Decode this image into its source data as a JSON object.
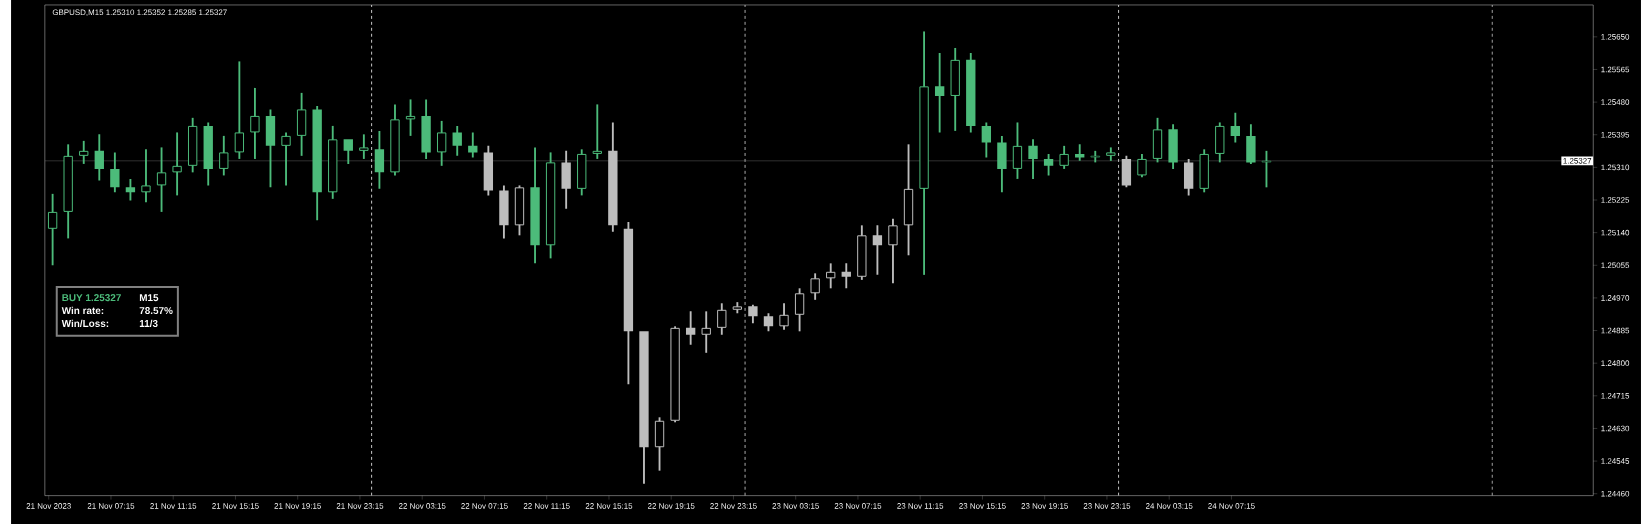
{
  "chart_data": {
    "type": "candlestick",
    "title": "GBPUSD,M15  1.25310 1.25352 1.25285 1.25327",
    "annotations": [
      "BUY 1.25327",
      "M15",
      "Win rate:",
      "78.57%",
      "Win/Loss:",
      "11/3"
    ],
    "x": [
      "2023-11-21T03:30",
      "2023-11-21T04:30",
      "2023-11-21T05:30",
      "2023-11-21T06:30",
      "2023-11-21T07:30",
      "2023-11-21T08:30",
      "2023-11-21T09:30",
      "2023-11-21T10:30",
      "2023-11-21T11:30",
      "2023-11-21T12:30",
      "2023-11-21T13:30",
      "2023-11-21T14:30",
      "2023-11-21T15:30",
      "2023-11-21T16:30",
      "2023-11-21T17:30",
      "2023-11-21T18:30",
      "2023-11-21T19:30",
      "2023-11-21T20:30",
      "2023-11-21T21:30",
      "2023-11-21T22:30",
      "2023-11-21T23:30",
      "2023-11-22T00:30",
      "2023-11-22T01:30",
      "2023-11-22T02:30",
      "2023-11-22T03:30",
      "2023-11-22T04:30",
      "2023-11-22T05:30",
      "2023-11-22T06:30",
      "2023-11-22T07:30",
      "2023-11-22T08:30",
      "2023-11-22T09:30",
      "2023-11-22T10:30",
      "2023-11-22T11:30",
      "2023-11-22T12:30",
      "2023-11-22T13:30",
      "2023-11-22T14:30",
      "2023-11-22T15:30",
      "2023-11-22T16:30",
      "2023-11-22T17:30",
      "2023-11-22T18:30",
      "2023-11-22T19:30",
      "2023-11-22T20:30",
      "2023-11-22T21:30",
      "2023-11-22T22:30",
      "2023-11-22T23:30",
      "2023-11-23T00:30",
      "2023-11-23T01:30",
      "2023-11-23T02:30",
      "2023-11-23T03:30",
      "2023-11-23T04:30",
      "2023-11-23T05:30",
      "2023-11-23T06:30",
      "2023-11-23T07:30",
      "2023-11-23T08:30",
      "2023-11-23T09:30",
      "2023-11-23T10:30",
      "2023-11-23T11:30",
      "2023-11-23T12:30",
      "2023-11-23T13:30",
      "2023-11-23T14:30",
      "2023-11-23T15:30",
      "2023-11-23T16:30",
      "2023-11-23T17:30",
      "2023-11-23T18:30",
      "2023-11-23T19:30",
      "2023-11-23T20:30",
      "2023-11-23T21:30",
      "2023-11-23T22:30",
      "2023-11-23T23:30",
      "2023-11-24T00:30",
      "2023-11-24T01:30",
      "2023-11-24T02:30",
      "2023-11-24T03:30",
      "2023-11-24T04:30",
      "2023-11-24T05:30",
      "2023-11-24T06:30",
      "2023-11-24T07:30",
      "2023-11-24T08:30",
      "2023-11-24T09:30"
    ],
    "ohlc": [
      [
        1.2515,
        1.25241,
        1.25055,
        1.25194
      ],
      [
        1.25194,
        1.2537,
        1.25125,
        1.2534
      ],
      [
        1.2534,
        1.25379,
        1.25319,
        1.25353
      ],
      [
        1.25353,
        1.25396,
        1.25276,
        1.25306
      ],
      [
        1.25306,
        1.25349,
        1.25245,
        1.25258
      ],
      [
        1.25258,
        1.2528,
        1.25224,
        1.25245
      ],
      [
        1.25245,
        1.25357,
        1.25219,
        1.25263
      ],
      [
        1.25263,
        1.25362,
        1.25194,
        1.25297
      ],
      [
        1.25297,
        1.25401,
        1.25237,
        1.25314
      ],
      [
        1.25314,
        1.25439,
        1.25297,
        1.25418
      ],
      [
        1.25418,
        1.25427,
        1.25263,
        1.25306
      ],
      [
        1.25306,
        1.25392,
        1.25289,
        1.25349
      ],
      [
        1.25349,
        1.25586,
        1.25332,
        1.25401
      ],
      [
        1.25401,
        1.25517,
        1.25332,
        1.25444
      ],
      [
        1.25444,
        1.25461,
        1.25258,
        1.25366
      ],
      [
        1.25366,
        1.25401,
        1.25263,
        1.25392
      ],
      [
        1.25392,
        1.25504,
        1.2534,
        1.25461
      ],
      [
        1.25461,
        1.2547,
        1.25172,
        1.25245
      ],
      [
        1.25245,
        1.25418,
        1.25228,
        1.25383
      ],
      [
        1.25383,
        1.25383,
        1.25319,
        1.25353
      ],
      [
        1.25353,
        1.25396,
        1.25332,
        1.25362
      ],
      [
        1.25357,
        1.25405,
        1.25254,
        1.25297
      ],
      [
        1.25297,
        1.25474,
        1.25289,
        1.25435
      ],
      [
        1.25435,
        1.25487,
        1.25392,
        1.25444
      ],
      [
        1.25444,
        1.25487,
        1.25332,
        1.25349
      ],
      [
        1.25349,
        1.25431,
        1.25314,
        1.25401
      ],
      [
        1.25401,
        1.25418,
        1.2534,
        1.25366
      ],
      [
        1.25366,
        1.25401,
        1.25336,
        1.25349
      ],
      [
        1.25349,
        1.25366,
        1.25237,
        1.2525
      ],
      [
        1.2525,
        1.25263,
        1.25125,
        1.25159
      ],
      [
        1.25159,
        1.25263,
        1.25133,
        1.25258
      ],
      [
        1.25258,
        1.25362,
        1.2506,
        1.25107
      ],
      [
        1.25107,
        1.25349,
        1.25073,
        1.25323
      ],
      [
        1.25323,
        1.25353,
        1.25202,
        1.25254
      ],
      [
        1.25254,
        1.25357,
        1.25237,
        1.25345
      ],
      [
        1.25345,
        1.25474,
        1.25332,
        1.25353
      ],
      [
        1.25353,
        1.25427,
        1.25142,
        1.25159
      ],
      [
        1.2515,
        1.25168,
        1.24745,
        1.24883
      ],
      [
        1.24883,
        1.24883,
        1.24486,
        1.24581
      ],
      [
        1.24581,
        1.24659,
        1.2452,
        1.2465
      ],
      [
        1.2465,
        1.24896,
        1.24646,
        1.24892
      ],
      [
        1.24892,
        1.24935,
        1.24848,
        1.24874
      ],
      [
        1.24874,
        1.24935,
        1.24827,
        1.24892
      ],
      [
        1.24892,
        1.24956,
        1.24874,
        1.24939
      ],
      [
        1.24939,
        1.24959,
        1.2493,
        1.24948
      ],
      [
        1.24948,
        1.24952,
        1.24904,
        1.24922
      ],
      [
        1.24922,
        1.2493,
        1.24883,
        1.24896
      ],
      [
        1.24896,
        1.24956,
        1.24887,
        1.24926
      ],
      [
        1.24926,
        1.24995,
        1.24883,
        1.24982
      ],
      [
        1.24982,
        1.25034,
        1.24965,
        1.25021
      ],
      [
        1.25021,
        1.2506,
        1.24995,
        1.25038
      ],
      [
        1.25038,
        1.2506,
        1.24995,
        1.25025
      ],
      [
        1.25025,
        1.25159,
        1.25017,
        1.25133
      ],
      [
        1.25133,
        1.25159,
        1.2503,
        1.25107
      ],
      [
        1.25107,
        1.25176,
        1.25008,
        1.25159
      ],
      [
        1.25159,
        1.2537,
        1.25081,
        1.25254
      ],
      [
        1.25254,
        1.25664,
        1.2503,
        1.25521
      ],
      [
        1.25521,
        1.25608,
        1.25401,
        1.25496
      ],
      [
        1.25496,
        1.25621,
        1.25405,
        1.2559
      ],
      [
        1.2559,
        1.25608,
        1.25401,
        1.25418
      ],
      [
        1.25418,
        1.25427,
        1.25336,
        1.25375
      ],
      [
        1.25375,
        1.25392,
        1.25245,
        1.25306
      ],
      [
        1.25306,
        1.25427,
        1.2528,
        1.25366
      ],
      [
        1.25366,
        1.25383,
        1.2528,
        1.25332
      ],
      [
        1.25332,
        1.25345,
        1.25289,
        1.25314
      ],
      [
        1.25314,
        1.25366,
        1.25306,
        1.25345
      ],
      [
        1.25345,
        1.2537,
        1.25327,
        1.25336
      ],
      [
        1.25336,
        1.25353,
        1.25323,
        1.2534
      ],
      [
        1.2534,
        1.25362,
        1.25327,
        1.25349
      ],
      [
        1.25332,
        1.2534,
        1.25258,
        1.25263
      ],
      [
        1.25289,
        1.25345,
        1.25284,
        1.25332
      ],
      [
        1.25332,
        1.25439,
        1.25323,
        1.25409
      ],
      [
        1.25409,
        1.25422,
        1.25306,
        1.25323
      ],
      [
        1.25323,
        1.25332,
        1.25237,
        1.25254
      ],
      [
        1.25254,
        1.25357,
        1.25245,
        1.25345
      ],
      [
        1.25345,
        1.25427,
        1.25323,
        1.25418
      ],
      [
        1.25418,
        1.25452,
        1.25375,
        1.25392
      ],
      [
        1.25392,
        1.25422,
        1.25319,
        1.25323
      ],
      [
        1.25323,
        1.25353,
        1.25258,
        1.25327
      ]
    ],
    "colors": [
      "#4cbb7a",
      "#4cbb7a",
      "#4cbb7a",
      "#4cbb7a",
      "#4cbb7a",
      "#4cbb7a",
      "#4cbb7a",
      "#4cbb7a",
      "#4cbb7a",
      "#4cbb7a",
      "#4cbb7a",
      "#4cbb7a",
      "#4cbb7a",
      "#4cbb7a",
      "#4cbb7a",
      "#4cbb7a",
      "#4cbb7a",
      "#4cbb7a",
      "#4cbb7a",
      "#4cbb7a",
      "#4cbb7a",
      "#4cbb7a",
      "#4cbb7a",
      "#4cbb7a",
      "#4cbb7a",
      "#4cbb7a",
      "#4cbb7a",
      "#4cbb7a",
      "#bdbdbd",
      "#bdbdbd",
      "#bdbdbd",
      "#4cbb7a",
      "#4cbb7a",
      "#bdbdbd",
      "#4cbb7a",
      "#4cbb7a",
      "#bdbdbd",
      "#bdbdbd",
      "#bdbdbd",
      "#bdbdbd",
      "#bdbdbd",
      "#bdbdbd",
      "#bdbdbd",
      "#bdbdbd",
      "#bdbdbd",
      "#bdbdbd",
      "#bdbdbd",
      "#bdbdbd",
      "#bdbdbd",
      "#bdbdbd",
      "#bdbdbd",
      "#bdbdbd",
      "#bdbdbd",
      "#bdbdbd",
      "#bdbdbd",
      "#bdbdbd",
      "#4cbb7a",
      "#4cbb7a",
      "#4cbb7a",
      "#4cbb7a",
      "#4cbb7a",
      "#4cbb7a",
      "#4cbb7a",
      "#4cbb7a",
      "#4cbb7a",
      "#4cbb7a",
      "#4cbb7a",
      "#4cbb7a",
      "#4cbb7a",
      "#bdbdbd",
      "#4cbb7a",
      "#4cbb7a",
      "#4cbb7a",
      "#bdbdbd",
      "#4cbb7a",
      "#4cbb7a",
      "#4cbb7a",
      "#4cbb7a",
      "#4cbb7a"
    ],
    "xlim": [
      "2023-11-21T03:00",
      "2023-11-25T06:30"
    ],
    "xticks": [
      {
        "value": "2023-11-21T03:15",
        "label": "21 Nov 2023"
      },
      {
        "value": "2023-11-21T07:15",
        "label": "21 Nov 07:15"
      },
      {
        "value": "2023-11-21T11:15",
        "label": "21 Nov 11:15"
      },
      {
        "value": "2023-11-21T15:15",
        "label": "21 Nov 15:15"
      },
      {
        "value": "2023-11-21T19:15",
        "label": "21 Nov 19:15"
      },
      {
        "value": "2023-11-21T23:15",
        "label": "21 Nov 23:15"
      },
      {
        "value": "2023-11-22T03:15",
        "label": "22 Nov 03:15"
      },
      {
        "value": "2023-11-22T07:15",
        "label": "22 Nov 07:15"
      },
      {
        "value": "2023-11-22T11:15",
        "label": "22 Nov 11:15"
      },
      {
        "value": "2023-11-22T15:15",
        "label": "22 Nov 15:15"
      },
      {
        "value": "2023-11-22T19:15",
        "label": "22 Nov 19:15"
      },
      {
        "value": "2023-11-22T23:15",
        "label": "22 Nov 23:15"
      },
      {
        "value": "2023-11-23T03:15",
        "label": "23 Nov 03:15"
      },
      {
        "value": "2023-11-23T07:15",
        "label": "23 Nov 07:15"
      },
      {
        "value": "2023-11-23T11:15",
        "label": "23 Nov 11:15"
      },
      {
        "value": "2023-11-23T15:15",
        "label": "23 Nov 15:15"
      },
      {
        "value": "2023-11-23T19:15",
        "label": "23 Nov 19:15"
      },
      {
        "value": "2023-11-23T23:15",
        "label": "23 Nov 23:15"
      },
      {
        "value": "2023-11-24T03:15",
        "label": "24 Nov 03:15"
      },
      {
        "value": "2023-11-24T07:15",
        "label": "24 Nov 07:15"
      }
    ],
    "ylim": [
      1.24455,
      1.25733
    ],
    "yticks": [
      {
        "value": 1.2446,
        "label": "1.24460"
      },
      {
        "value": 1.24545,
        "label": "1.24545"
      },
      {
        "value": 1.2463,
        "label": "1.24630"
      },
      {
        "value": 1.24715,
        "label": "1.24715"
      },
      {
        "value": 1.248,
        "label": "1.24800"
      },
      {
        "value": 1.24885,
        "label": "1.24885"
      },
      {
        "value": 1.2497,
        "label": "1.24970"
      },
      {
        "value": 1.25055,
        "label": "1.25055"
      },
      {
        "value": 1.2514,
        "label": "1.25140"
      },
      {
        "value": 1.25225,
        "label": "1.25225"
      },
      {
        "value": 1.2531,
        "label": "1.25310"
      },
      {
        "value": 1.25395,
        "label": "1.25395"
      },
      {
        "value": 1.2548,
        "label": "1.25480"
      },
      {
        "value": 1.25565,
        "label": "1.25565"
      },
      {
        "value": 1.2565,
        "label": "1.25650"
      }
    ],
    "ref_lines": [
      {
        "axis": "x",
        "value": "2023-11-22T00:00",
        "color": "#ffffff",
        "line_style": "dashed"
      },
      {
        "axis": "x",
        "value": "2023-11-23T00:00",
        "color": "#ffffff",
        "line_style": "dashed"
      },
      {
        "axis": "x",
        "value": "2023-11-24T00:00",
        "color": "#ffffff",
        "line_style": "dashed"
      },
      {
        "axis": "x",
        "value": "2023-11-25T00:00",
        "color": "#ffffff",
        "line_style": "dashed"
      },
      {
        "axis": "y",
        "value": 1.25327,
        "label": "1.25327",
        "color": "#a0a0a0",
        "line_style": "solid"
      }
    ]
  }
}
